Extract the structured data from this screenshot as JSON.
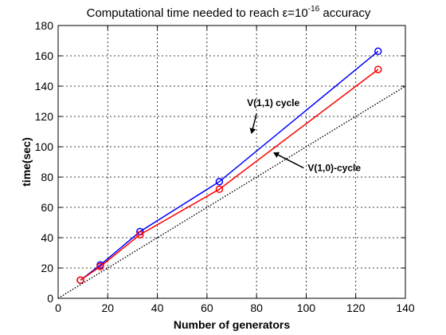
{
  "chart_data": {
    "type": "line",
    "title": {
      "prefix": "Computational time needed to reach ",
      "epsilon": "ε",
      "eq": "=10",
      "exponent": "-16",
      "suffix": " accuracy"
    },
    "xlabel": "Number of generators",
    "ylabel": "time(sec)",
    "xlim": [
      0,
      140
    ],
    "ylim": [
      0,
      180
    ],
    "xticks": [
      0,
      20,
      40,
      60,
      80,
      100,
      120,
      140
    ],
    "yticks": [
      0,
      20,
      40,
      60,
      80,
      100,
      120,
      140,
      160,
      180
    ],
    "grid": true,
    "series": [
      {
        "color": "#0000ff",
        "marker": "circle",
        "x": [
          9,
          17,
          33,
          65,
          129
        ],
        "y": [
          12,
          22,
          44,
          77,
          163
        ]
      },
      {
        "color": "#ff0000",
        "marker": "circle",
        "x": [
          9,
          17,
          33,
          65,
          129
        ],
        "y": [
          12,
          21,
          42,
          72,
          151
        ]
      },
      {
        "color": "#000000",
        "style": "dotted",
        "x": [
          0,
          140
        ],
        "y": [
          0,
          140
        ]
      }
    ],
    "annotations": [
      {
        "text": "V(1,1) cycle",
        "arrow_from": [
          80,
          122
        ],
        "arrow_to": [
          78,
          109
        ]
      },
      {
        "text": "V(1,0)-cycle",
        "arrow_from": [
          99,
          86
        ],
        "arrow_to": [
          87,
          96
        ]
      }
    ]
  }
}
